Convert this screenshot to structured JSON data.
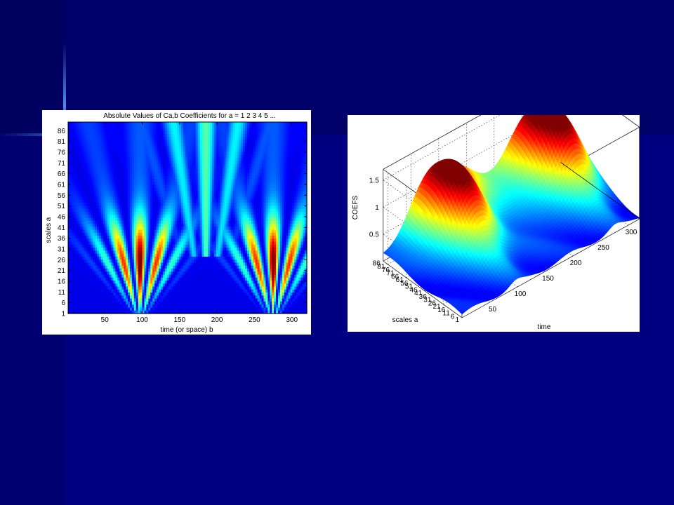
{
  "chart_data": [
    {
      "type": "heatmap",
      "title": "Absolute Values of Ca,b Coefficients for a =  1 2 3 4 5 ...",
      "xlabel": "time (or space) b",
      "ylabel": "scales a",
      "x_ticks": [
        "50",
        "100",
        "150",
        "200",
        "250",
        "300"
      ],
      "y_ticks": [
        "1",
        "6",
        "11",
        "16",
        "21",
        "26",
        "31",
        "36",
        "41",
        "46",
        "51",
        "56",
        "61",
        "66",
        "71",
        "76",
        "81",
        "86"
      ],
      "xlim": [
        1,
        320
      ],
      "ylim": [
        1,
        90
      ],
      "colormap": "jet",
      "v_centers": [
        97,
        275
      ],
      "center_ridge_x": 185
    },
    {
      "type": "surface",
      "zlabel": "COEFS",
      "xlabel": "time",
      "ylabel": "scales a",
      "x_ticks": [
        "50",
        "100",
        "150",
        "200",
        "250",
        "300"
      ],
      "y_ticks": [
        "1",
        "6",
        "11",
        "16",
        "21",
        "26",
        "31",
        "36",
        "41",
        "46",
        "51",
        "56",
        "61",
        "66",
        "71",
        "76",
        "81",
        "86"
      ],
      "z_ticks": [
        "0.5",
        "1",
        "1.5"
      ],
      "colormap": "jet",
      "peaks_time": [
        97,
        275
      ],
      "z_peak": 1.3
    }
  ]
}
